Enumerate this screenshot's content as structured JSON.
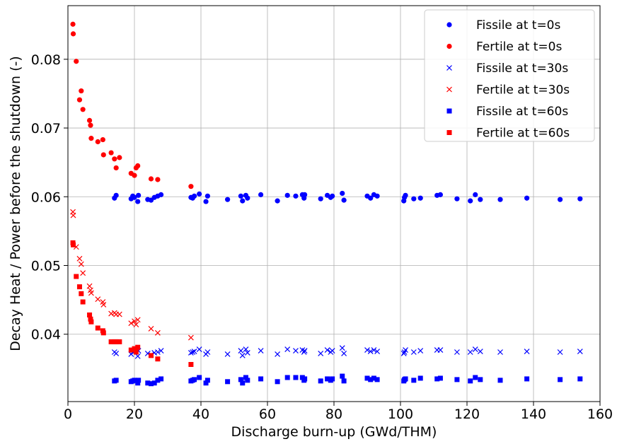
{
  "chart_data": {
    "type": "scatter",
    "title": "",
    "xlabel": "Discharge burn-up (GWd/THM)",
    "ylabel": "Decay Heat / Power before the shutdown (-)",
    "xlim": [
      0,
      160
    ],
    "ylim": [
      0.0302,
      0.0878
    ],
    "xticks": [
      0,
      20,
      40,
      60,
      80,
      100,
      120,
      140,
      160
    ],
    "xtick_labels": [
      "0",
      "20",
      "40",
      "60",
      "80",
      "100",
      "120",
      "140",
      "160"
    ],
    "yticks": [
      0.04,
      0.05,
      0.06,
      0.07,
      0.08
    ],
    "ytick_labels": [
      "0.04",
      "0.05",
      "0.06",
      "0.07",
      "0.08"
    ],
    "grid": true,
    "legend_position": "top-right",
    "series": [
      {
        "name": "Fissile at t=0s",
        "color": "#0000ff",
        "marker": "circle",
        "x": [
          14,
          14.5,
          19,
          19.5,
          20,
          21,
          21.2,
          24,
          25,
          26,
          27,
          28,
          37,
          37.5,
          38,
          39.5,
          41.5,
          42,
          48,
          52,
          52.5,
          53.5,
          54,
          58,
          63,
          66,
          68.5,
          70.5,
          71,
          71.2,
          76,
          78,
          79,
          79.5,
          82.5,
          83,
          90,
          91,
          92,
          93,
          101,
          101.2,
          101.5,
          104,
          106,
          111,
          112,
          117,
          121,
          122.5,
          124,
          130,
          138,
          148,
          154
        ],
        "y": [
          0.0598,
          0.0602,
          0.0597,
          0.0601,
          0.0599,
          0.0593,
          0.0602,
          0.0596,
          0.0595,
          0.0599,
          0.0601,
          0.0603,
          0.0599,
          0.0598,
          0.0601,
          0.0604,
          0.0593,
          0.0601,
          0.0596,
          0.0601,
          0.0594,
          0.0602,
          0.0598,
          0.0603,
          0.0594,
          0.0602,
          0.0601,
          0.0603,
          0.0598,
          0.0603,
          0.0597,
          0.0602,
          0.0599,
          0.0601,
          0.0605,
          0.0595,
          0.0601,
          0.0598,
          0.0603,
          0.0601,
          0.0594,
          0.0599,
          0.0602,
          0.0597,
          0.0598,
          0.0602,
          0.0603,
          0.0597,
          0.0594,
          0.0603,
          0.0596,
          0.0596,
          0.0598,
          0.0596,
          0.0597
        ]
      },
      {
        "name": "Fertile at t=0s",
        "color": "#ff0000",
        "marker": "circle",
        "x": [
          1.5,
          1.6,
          2.5,
          3.5,
          4,
          4.5,
          6.5,
          6.8,
          7,
          9,
          10.5,
          10.7,
          13,
          14,
          14.5,
          15.5,
          19,
          20,
          20.5,
          21,
          25,
          27,
          37
        ],
        "y": [
          0.0851,
          0.0837,
          0.0797,
          0.0741,
          0.0754,
          0.0727,
          0.0711,
          0.0704,
          0.0685,
          0.068,
          0.0683,
          0.0661,
          0.0664,
          0.0655,
          0.0642,
          0.0657,
          0.0634,
          0.0631,
          0.0642,
          0.0645,
          0.0626,
          0.0625,
          0.0615
        ]
      },
      {
        "name": "Fissile at t=30s",
        "color": "#0000ff",
        "marker": "x",
        "x": [
          14,
          14.5,
          19,
          19.5,
          20,
          21,
          21.2,
          24,
          25,
          26,
          27,
          28,
          37,
          37.5,
          38,
          39.5,
          41.5,
          42,
          48,
          52,
          52.5,
          53.5,
          54,
          58,
          63,
          66,
          68.5,
          70.5,
          71,
          71.2,
          76,
          78,
          79,
          79.5,
          82.5,
          83,
          90,
          91,
          92,
          93,
          101,
          101.2,
          101.5,
          104,
          106,
          111,
          112,
          117,
          121,
          122.5,
          124,
          130,
          138,
          148,
          154
        ],
        "y": [
          0.0374,
          0.0372,
          0.0371,
          0.0374,
          0.0375,
          0.0368,
          0.0376,
          0.0372,
          0.037,
          0.0373,
          0.0374,
          0.0376,
          0.0373,
          0.0374,
          0.0375,
          0.0378,
          0.0371,
          0.0374,
          0.0371,
          0.0376,
          0.0369,
          0.0378,
          0.0373,
          0.0376,
          0.0371,
          0.0378,
          0.0376,
          0.0377,
          0.0374,
          0.0376,
          0.0372,
          0.0377,
          0.0374,
          0.0376,
          0.038,
          0.0372,
          0.0377,
          0.0375,
          0.0377,
          0.0375,
          0.0372,
          0.0374,
          0.0377,
          0.0374,
          0.0376,
          0.0377,
          0.0377,
          0.0374,
          0.0374,
          0.0378,
          0.0375,
          0.0374,
          0.0375,
          0.0374,
          0.0375
        ]
      },
      {
        "name": "Fertile at t=30s",
        "color": "#ff0000",
        "marker": "x",
        "x": [
          1.5,
          1.6,
          2.5,
          3.5,
          4,
          4.5,
          6.5,
          6.8,
          7,
          9,
          10.5,
          10.7,
          13,
          14,
          14.5,
          15.5,
          19,
          20,
          20.5,
          21,
          25,
          27,
          37
        ],
        "y": [
          0.0578,
          0.0573,
          0.0527,
          0.051,
          0.0502,
          0.0489,
          0.047,
          0.0464,
          0.046,
          0.0451,
          0.0447,
          0.0443,
          0.043,
          0.0431,
          0.0429,
          0.0429,
          0.0416,
          0.0419,
          0.0414,
          0.0421,
          0.0408,
          0.0402,
          0.0395
        ]
      },
      {
        "name": "Fissile at t=60s",
        "color": "#0000ff",
        "marker": "square",
        "x": [
          14,
          14.5,
          19,
          19.5,
          20,
          21,
          21.2,
          24,
          25,
          26,
          27,
          28,
          37,
          37.5,
          38,
          39.5,
          41.5,
          42,
          48,
          52,
          52.5,
          53.5,
          54,
          58,
          63,
          66,
          68.5,
          70.5,
          71,
          71.2,
          76,
          78,
          79,
          79.5,
          82.5,
          83,
          90,
          91,
          92,
          93,
          101,
          101.2,
          101.5,
          104,
          106,
          111,
          112,
          117,
          121,
          122.5,
          124,
          130,
          138,
          148,
          154
        ],
        "y": [
          0.0332,
          0.0333,
          0.0331,
          0.0332,
          0.0333,
          0.0329,
          0.0333,
          0.0329,
          0.0328,
          0.0329,
          0.0333,
          0.0335,
          0.0332,
          0.0333,
          0.0334,
          0.0337,
          0.0329,
          0.0333,
          0.0331,
          0.0334,
          0.0329,
          0.0337,
          0.0333,
          0.0335,
          0.0331,
          0.0337,
          0.0337,
          0.0337,
          0.0333,
          0.0335,
          0.0332,
          0.0335,
          0.0333,
          0.0335,
          0.0339,
          0.0332,
          0.0336,
          0.0334,
          0.0336,
          0.0334,
          0.0332,
          0.0334,
          0.0335,
          0.0333,
          0.0336,
          0.0335,
          0.0336,
          0.0334,
          0.0332,
          0.0337,
          0.0334,
          0.0333,
          0.0335,
          0.0334,
          0.0335
        ]
      },
      {
        "name": "Fertile at t=60s",
        "color": "#ff0000",
        "marker": "square",
        "x": [
          1.5,
          1.6,
          2.5,
          3.5,
          4,
          4.5,
          6.5,
          6.8,
          7,
          9,
          10.5,
          10.7,
          13,
          14,
          14.5,
          15.5,
          19,
          20,
          20.5,
          21,
          25,
          27,
          37
        ],
        "y": [
          0.0533,
          0.053,
          0.0484,
          0.0469,
          0.0459,
          0.0447,
          0.0428,
          0.0422,
          0.0418,
          0.0409,
          0.0405,
          0.0402,
          0.0389,
          0.0389,
          0.0389,
          0.0389,
          0.0377,
          0.0379,
          0.0374,
          0.0381,
          0.0369,
          0.0364,
          0.0356
        ]
      }
    ]
  }
}
